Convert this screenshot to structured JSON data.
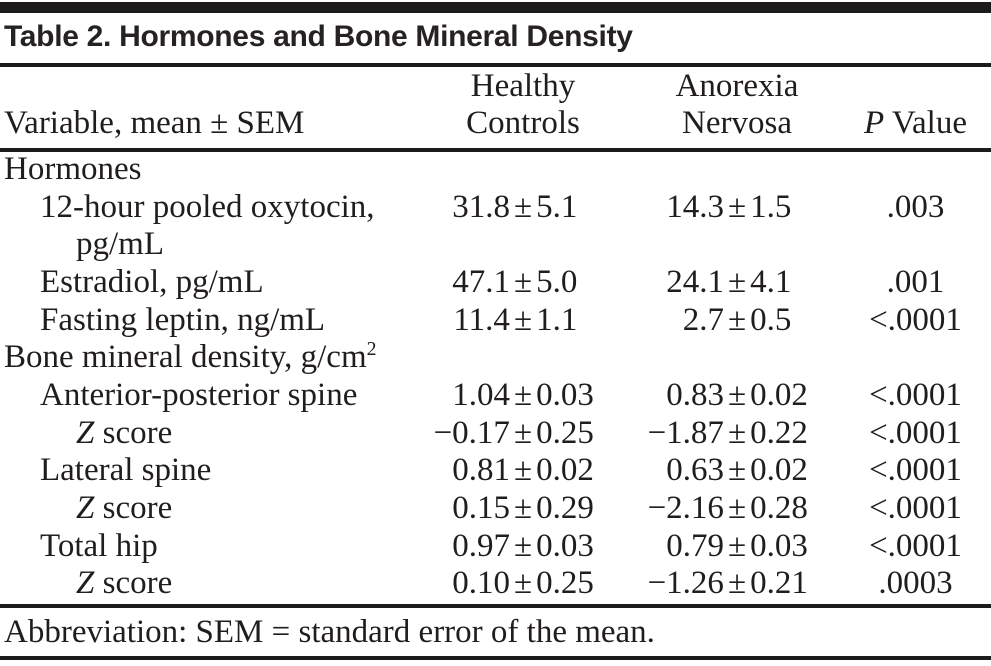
{
  "title": "Table 2. Hormones and Bone Mineral Density",
  "header": {
    "variable": "Variable, mean ± SEM",
    "healthy_line1": "Healthy",
    "healthy_line2": "Controls",
    "anorexia_line1": "Anorexia",
    "anorexia_line2": "Nervosa",
    "p_italic": "P",
    "p_rest": " Value"
  },
  "plus_minus": "±",
  "rows": [
    {
      "type": "section",
      "indent": 0,
      "label": "Hormones"
    },
    {
      "type": "data",
      "indent": 1,
      "label": "12-hour pooled oxytocin,",
      "label_cont": "pg/mL",
      "healthy": {
        "mean": "31.8",
        "sem": "5.1"
      },
      "anorexia": {
        "mean": "14.3",
        "sem": "1.5"
      },
      "p": ".003"
    },
    {
      "type": "data",
      "indent": 1,
      "label": "Estradiol, pg/mL",
      "healthy": {
        "mean": "47.1",
        "sem": "5.0"
      },
      "anorexia": {
        "mean": "24.1",
        "sem": "4.1"
      },
      "p": ".001"
    },
    {
      "type": "data",
      "indent": 1,
      "label": "Fasting leptin, ng/mL",
      "healthy": {
        "mean": "11.4",
        "sem": "1.1"
      },
      "anorexia": {
        "mean": "2.7",
        "sem": "0.5"
      },
      "p": "<.0001"
    },
    {
      "type": "section",
      "indent": 0,
      "label": "Bone mineral density, g/cm",
      "label_sup": "2"
    },
    {
      "type": "data",
      "indent": 1,
      "label": "Anterior-posterior spine",
      "healthy": {
        "mean": "1.04",
        "sem": "0.03"
      },
      "anorexia": {
        "mean": "0.83",
        "sem": "0.02"
      },
      "p": "<.0001"
    },
    {
      "type": "data",
      "indent": 2,
      "label_italic": "Z",
      "label": " score",
      "healthy": {
        "mean": "−0.17",
        "sem": "0.25"
      },
      "anorexia": {
        "mean": "−1.87",
        "sem": "0.22"
      },
      "p": "<.0001"
    },
    {
      "type": "data",
      "indent": 1,
      "label": "Lateral spine",
      "healthy": {
        "mean": "0.81",
        "sem": "0.02"
      },
      "anorexia": {
        "mean": "0.63",
        "sem": "0.02"
      },
      "p": "<.0001"
    },
    {
      "type": "data",
      "indent": 2,
      "label_italic": "Z",
      "label": " score",
      "healthy": {
        "mean": "0.15",
        "sem": "0.29"
      },
      "anorexia": {
        "mean": "−2.16",
        "sem": "0.28"
      },
      "p": "<.0001"
    },
    {
      "type": "data",
      "indent": 1,
      "label": "Total hip",
      "healthy": {
        "mean": "0.97",
        "sem": "0.03"
      },
      "anorexia": {
        "mean": "0.79",
        "sem": "0.03"
      },
      "p": "<.0001"
    },
    {
      "type": "data",
      "indent": 2,
      "label_italic": "Z",
      "label": " score",
      "healthy": {
        "mean": "0.10",
        "sem": "0.25"
      },
      "anorexia": {
        "mean": "−1.26",
        "sem": "0.21"
      },
      "p": ".0003"
    }
  ],
  "footnote": "Abbreviation: SEM = standard error of the mean.",
  "colors": {
    "text": "#211d1e",
    "rule": "#1d1a1b",
    "background": "#ffffff"
  }
}
